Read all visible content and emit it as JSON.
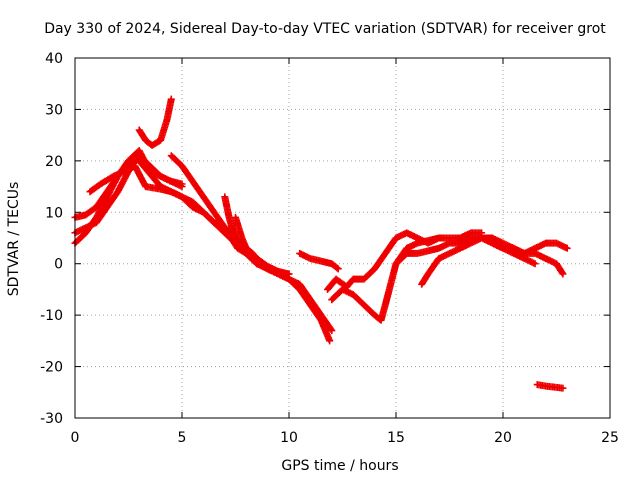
{
  "chart_data": {
    "type": "scatter",
    "title": "Day 330 of 2024, Sidereal Day-to-day VTEC variation (SDTVAR) for receiver grot",
    "xlabel": "GPS time / hours",
    "ylabel": "SDTVAR / TECUs",
    "xlim": [
      0,
      25
    ],
    "ylim": [
      -30,
      40
    ],
    "xticks": [
      0,
      5,
      10,
      15,
      20,
      25
    ],
    "yticks": [
      -30,
      -20,
      -10,
      0,
      10,
      20,
      30,
      40
    ],
    "xtick_labels": [
      "0",
      "5",
      "10",
      "15",
      "20",
      "25"
    ],
    "ytick_labels": [
      "-30",
      "-20",
      "-10",
      "0",
      "10",
      "20",
      "30",
      "40"
    ],
    "grid": true,
    "marker": "+",
    "color": "#ee0000",
    "series": [
      {
        "name": "s1",
        "x": [
          0.0,
          0.5,
          1.0,
          1.5,
          2.0,
          2.5,
          2.8,
          3.2,
          3.6,
          4.0,
          4.5,
          5.0,
          5.5,
          6.0,
          6.5,
          7.0,
          7.5,
          8.0,
          8.5,
          9.0,
          9.5,
          10.0
        ],
        "y": [
          4,
          6,
          9,
          13,
          17,
          20,
          21,
          19,
          17,
          15,
          14,
          13,
          11,
          10,
          8,
          7,
          5,
          3,
          1,
          -1,
          -2,
          -2
        ]
      },
      {
        "name": "s2",
        "x": [
          0.0,
          0.5,
          1.0,
          1.5,
          2.0,
          2.5,
          3.0,
          3.5,
          4.0,
          4.5,
          5.0
        ],
        "y": [
          9,
          9.5,
          11,
          14,
          17,
          20,
          22,
          18,
          17,
          16,
          15.5
        ]
      },
      {
        "name": "s3",
        "x": [
          0.0,
          0.5,
          1.0,
          1.5,
          2.0,
          2.5,
          3.0,
          3.5,
          4.0,
          4.5,
          5.0
        ],
        "y": [
          6,
          7,
          8,
          11,
          14,
          18,
          21,
          19,
          17,
          16,
          15
        ]
      },
      {
        "name": "s4",
        "x": [
          0.7,
          1.2,
          1.8,
          2.3,
          2.8,
          3.3,
          4.0,
          4.5,
          5.0,
          5.5,
          6.0,
          6.5,
          7.0,
          7.5,
          8.0,
          8.5,
          9.0,
          9.5,
          10.0,
          10.5,
          11.0,
          11.5,
          11.9
        ],
        "y": [
          14,
          15.5,
          17,
          18,
          19,
          15,
          14.5,
          14,
          13,
          12,
          10,
          8,
          6,
          4,
          2,
          0,
          -1,
          -2,
          -3,
          -5,
          -8,
          -11,
          -15
        ]
      },
      {
        "name": "s5",
        "x": [
          3.0,
          3.3,
          3.6,
          4.0,
          4.3,
          4.5
        ],
        "y": [
          26,
          24,
          23,
          24,
          28,
          32
        ]
      },
      {
        "name": "s6",
        "x": [
          4.5,
          5.0,
          5.5,
          6.0,
          6.5,
          7.0,
          7.3,
          7.6,
          8.0,
          8.5,
          9.0,
          9.5,
          10.0,
          10.5,
          11.0,
          11.5,
          12.0
        ],
        "y": [
          21,
          19,
          16,
          13,
          10,
          7,
          5,
          3,
          2,
          0,
          -1,
          -2,
          -3,
          -4,
          -7,
          -10,
          -13
        ]
      },
      {
        "name": "s7",
        "x": [
          7.0,
          7.2,
          7.4,
          7.6,
          7.8,
          8.0,
          8.3
        ],
        "y": [
          13,
          9,
          6,
          4,
          3,
          2,
          1
        ]
      },
      {
        "name": "s8",
        "x": [
          7.5,
          7.8,
          8.0,
          8.3,
          8.5,
          9.0,
          9.5,
          10.0
        ],
        "y": [
          9,
          5,
          3,
          2,
          1,
          -0.5,
          -1.5,
          -2
        ]
      },
      {
        "name": "s9",
        "x": [
          10.5,
          11.0,
          11.5,
          12.0,
          12.3
        ],
        "y": [
          2,
          1,
          0.5,
          0,
          -1
        ]
      },
      {
        "name": "s10",
        "x": [
          12.0,
          12.5,
          13.0,
          13.5,
          14.0,
          14.3,
          14.5,
          15.0,
          15.5,
          16.0,
          16.5,
          17.0,
          17.5,
          18.0,
          18.5,
          19.0
        ],
        "y": [
          -7,
          -5,
          -6,
          -8,
          -10,
          -11,
          -8,
          0,
          3,
          4,
          4.5,
          5,
          5,
          5,
          6,
          6
        ]
      },
      {
        "name": "s11",
        "x": [
          11.8,
          12.2,
          12.7,
          13.0,
          13.5,
          14.0,
          14.5,
          15.0,
          15.5,
          16.0,
          16.5,
          17.0
        ],
        "y": [
          -5,
          -3,
          -4.5,
          -3,
          -3,
          -1,
          2,
          5,
          6,
          5,
          4,
          5
        ]
      },
      {
        "name": "s12",
        "x": [
          15.0,
          15.5,
          16.0,
          16.5,
          17.0,
          17.5,
          18.0,
          18.5,
          19.0,
          19.5,
          20.0,
          20.5,
          21.0,
          21.5
        ],
        "y": [
          0,
          2,
          2,
          2.5,
          3,
          4,
          4,
          5,
          5,
          4,
          3,
          2,
          1,
          0
        ]
      },
      {
        "name": "s13",
        "x": [
          16.2,
          16.5,
          17.0,
          17.5,
          18.0,
          18.5,
          19.0,
          19.5,
          20.0,
          20.5,
          21.0,
          21.5,
          22.0,
          22.5,
          22.8
        ],
        "y": [
          -4,
          -2,
          1,
          2,
          3,
          4,
          5,
          5,
          4,
          3,
          2,
          2,
          1,
          0,
          -2
        ]
      },
      {
        "name": "s14",
        "x": [
          19.5,
          20.0,
          20.5,
          21.0,
          21.5,
          22.0,
          22.5,
          23.0
        ],
        "y": [
          4,
          3,
          3,
          2,
          3,
          4,
          4,
          3
        ]
      },
      {
        "name": "s15",
        "x": [
          21.6,
          22.0,
          22.4,
          22.8
        ],
        "y": [
          -23.5,
          -23.8,
          -24,
          -24.2
        ]
      }
    ]
  }
}
